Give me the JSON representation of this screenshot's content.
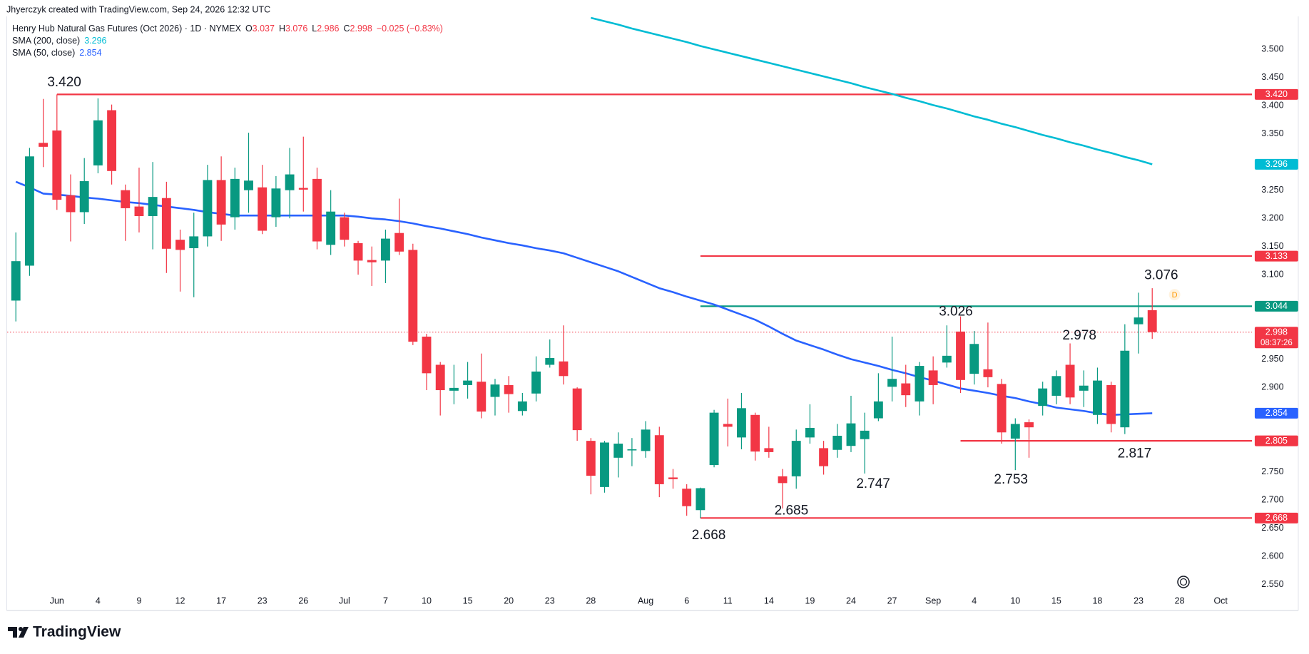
{
  "header": {
    "credit": "Jhyerczyk created with TradingView.com, Sep 24, 2026 12:32 UTC",
    "symbol": "Henry Hub Natural Gas Futures (Oct 2026) · 1D · NYMEX",
    "ohlc_labels": [
      "O",
      "H",
      "L",
      "C"
    ],
    "change": "−0.025 (−0.83%)"
  },
  "chart_data": {
    "type": "candlestick",
    "categories": [
      null,
      null,
      null,
      "Jun",
      null,
      null,
      "4",
      null,
      null,
      "9",
      null,
      null,
      "12",
      null,
      null,
      "17",
      null,
      null,
      "23",
      null,
      null,
      "26",
      null,
      null,
      "Jul",
      null,
      null,
      "7",
      null,
      null,
      "10",
      null,
      null,
      "15",
      null,
      null,
      "20",
      null,
      null,
      "23",
      null,
      null,
      "28",
      null,
      null,
      null,
      "Aug",
      null,
      null,
      "6",
      null,
      null,
      "11",
      null,
      null,
      "14",
      null,
      null,
      "19",
      null,
      null,
      "24",
      null,
      null,
      "27",
      null,
      null,
      "Sep",
      null,
      null,
      "4",
      null,
      null,
      "10",
      null,
      null,
      "15",
      null,
      null,
      "18",
      null,
      null,
      "23",
      null,
      null,
      "28",
      null,
      null,
      "Oct"
    ],
    "open": [
      3.054,
      3.116,
      3.334,
      3.356,
      3.241,
      3.211,
      3.294,
      3.392,
      3.25,
      3.221,
      3.204,
      3.236,
      3.162,
      3.147,
      3.168,
      3.268,
      3.202,
      3.25,
      3.255,
      3.202,
      3.25,
      3.254,
      3.27,
      3.153,
      3.202,
      3.156,
      3.126,
      3.125,
      3.174,
      3.144,
      2.99,
      2.94,
      2.894,
      2.904,
      2.91,
      2.883,
      2.904,
      2.858,
      2.889,
      2.94,
      2.946,
      2.898,
      2.805,
      2.723,
      2.775,
      2.788,
      2.787,
      2.815,
      2.74,
      2.72,
      2.682,
      2.762,
      2.835,
      2.811,
      2.851,
      2.792,
      2.742,
      2.742,
      2.811,
      2.792,
      2.789,
      2.796,
      2.808,
      2.845,
      2.901,
      2.907,
      2.875,
      2.93,
      2.944,
      2.999,
      2.924,
      2.932,
      2.906,
      2.809,
      2.838,
      2.867,
      2.885,
      2.94,
      2.894,
      2.851,
      2.904,
      2.829,
      3.012,
      3.037,
      null,
      null,
      null,
      null,
      null
    ],
    "high": [
      3.175,
      3.325,
      3.412,
      3.42,
      3.278,
      3.307,
      3.413,
      3.402,
      3.26,
      3.29,
      3.3,
      3.265,
      3.18,
      3.21,
      3.295,
      3.31,
      3.29,
      3.352,
      3.295,
      3.275,
      3.325,
      3.345,
      3.29,
      3.25,
      3.21,
      3.16,
      3.15,
      3.18,
      3.235,
      3.155,
      2.995,
      2.945,
      2.94,
      2.945,
      2.96,
      2.915,
      2.92,
      2.89,
      2.955,
      2.985,
      3.01,
      2.9,
      2.81,
      2.805,
      2.82,
      2.81,
      2.84,
      2.83,
      2.755,
      2.728,
      2.722,
      2.86,
      2.88,
      2.89,
      2.855,
      2.83,
      2.755,
      2.825,
      2.87,
      2.805,
      2.835,
      2.885,
      2.855,
      2.925,
      2.99,
      2.94,
      2.945,
      2.955,
      3.01,
      3.026,
      3.0,
      3.015,
      2.915,
      2.845,
      2.843,
      2.91,
      2.93,
      2.978,
      2.93,
      2.935,
      2.91,
      3.012,
      3.068,
      3.076,
      null,
      null,
      null,
      null,
      null
    ],
    "low": [
      3.017,
      3.098,
      3.291,
      3.215,
      3.159,
      3.19,
      3.28,
      3.26,
      3.16,
      3.175,
      3.145,
      3.103,
      3.07,
      3.06,
      3.15,
      3.16,
      3.18,
      3.21,
      3.172,
      3.185,
      3.2,
      3.212,
      3.145,
      3.135,
      3.15,
      3.1,
      3.08,
      3.085,
      3.135,
      2.975,
      2.895,
      2.85,
      2.87,
      2.88,
      2.845,
      2.85,
      2.855,
      2.85,
      2.875,
      2.935,
      2.905,
      2.805,
      2.71,
      2.713,
      2.74,
      2.76,
      2.775,
      2.705,
      2.72,
      2.672,
      2.668,
      2.758,
      2.795,
      2.79,
      2.77,
      2.775,
      2.685,
      2.72,
      2.8,
      2.745,
      2.775,
      2.785,
      2.747,
      2.84,
      2.875,
      2.865,
      2.85,
      2.87,
      2.935,
      2.89,
      2.905,
      2.9,
      2.8,
      2.753,
      2.775,
      2.85,
      2.87,
      2.87,
      2.865,
      2.835,
      2.82,
      2.817,
      2.96,
      2.986,
      null,
      null,
      null,
      null,
      null
    ],
    "close": [
      3.124,
      3.31,
      3.327,
      3.233,
      3.211,
      3.266,
      3.374,
      3.284,
      3.218,
      3.204,
      3.238,
      3.146,
      3.144,
      3.168,
      3.268,
      3.189,
      3.27,
      3.267,
      3.178,
      3.253,
      3.278,
      3.251,
      3.159,
      3.212,
      3.162,
      3.125,
      3.122,
      3.164,
      3.141,
      2.981,
      2.925,
      2.895,
      2.899,
      2.912,
      2.857,
      2.905,
      2.888,
      2.875,
      2.928,
      2.952,
      2.92,
      2.824,
      2.743,
      2.802,
      2.8,
      2.79,
      2.825,
      2.728,
      2.737,
      2.689,
      2.721,
      2.855,
      2.83,
      2.863,
      2.786,
      2.785,
      2.73,
      2.805,
      2.828,
      2.76,
      2.814,
      2.836,
      2.823,
      2.875,
      2.915,
      2.886,
      2.938,
      2.904,
      2.956,
      2.913,
      2.977,
      2.918,
      2.82,
      2.835,
      2.829,
      2.898,
      2.92,
      2.882,
      2.903,
      2.912,
      2.835,
      2.965,
      3.024,
      2.998,
      null,
      null,
      null,
      null,
      null
    ],
    "up_color": "#089981",
    "down_color": "#f23645",
    "overlays": [
      {
        "name": "SMA (200, close)",
        "color": "#00bcd4",
        "values": [
          null,
          null,
          null,
          null,
          null,
          null,
          null,
          null,
          null,
          null,
          null,
          null,
          null,
          null,
          null,
          null,
          null,
          null,
          null,
          null,
          null,
          null,
          null,
          null,
          null,
          null,
          null,
          null,
          null,
          null,
          null,
          null,
          null,
          null,
          null,
          null,
          null,
          null,
          null,
          null,
          null,
          null,
          3.556,
          3.55,
          3.544,
          3.537,
          3.531,
          3.525,
          3.519,
          3.513,
          3.506,
          3.5,
          3.494,
          3.488,
          3.482,
          3.476,
          3.47,
          3.464,
          3.458,
          3.452,
          3.446,
          3.44,
          3.433,
          3.427,
          3.421,
          3.414,
          3.408,
          3.401,
          3.395,
          3.388,
          3.381,
          3.375,
          3.368,
          3.362,
          3.355,
          3.348,
          3.342,
          3.335,
          3.329,
          3.322,
          3.316,
          3.309,
          3.303,
          3.296,
          null,
          null,
          null,
          null,
          null
        ]
      },
      {
        "name": "SMA (50, close)",
        "color": "#2962ff",
        "values": [
          3.265,
          3.255,
          3.244,
          3.242,
          3.24,
          3.237,
          3.235,
          3.232,
          3.229,
          3.227,
          3.224,
          3.221,
          3.218,
          3.215,
          3.211,
          3.208,
          3.205,
          3.205,
          3.205,
          3.205,
          3.205,
          3.205,
          3.205,
          3.205,
          3.205,
          3.203,
          3.2,
          3.198,
          3.195,
          3.191,
          3.186,
          3.182,
          3.177,
          3.172,
          3.166,
          3.161,
          3.156,
          3.152,
          3.147,
          3.143,
          3.138,
          3.13,
          3.122,
          3.114,
          3.106,
          3.096,
          3.086,
          3.076,
          3.069,
          3.061,
          3.054,
          3.047,
          3.038,
          3.029,
          3.02,
          3.008,
          2.995,
          2.983,
          2.975,
          2.967,
          2.958,
          2.95,
          2.944,
          2.938,
          2.931,
          2.925,
          2.918,
          2.912,
          2.905,
          2.898,
          2.894,
          2.89,
          2.885,
          2.881,
          2.875,
          2.87,
          2.864,
          2.861,
          2.858,
          2.854,
          2.851,
          2.852,
          2.853,
          2.854,
          null,
          null,
          null,
          null,
          null
        ]
      }
    ],
    "levels": [
      {
        "value": 3.42,
        "label": "3.420",
        "color": "#f23645"
      },
      {
        "value": 3.133,
        "label": "3.133",
        "color": "#f23645"
      },
      {
        "value": 3.044,
        "label": "3.044",
        "color": "#089981"
      },
      {
        "value": 2.805,
        "label": "2.805",
        "color": "#f23645"
      },
      {
        "value": 2.668,
        "label": "2.668",
        "color": "#f23645"
      }
    ],
    "annotations": [
      {
        "label": "3.420",
        "value": 3.42
      },
      {
        "label": "3.076",
        "value": 3.076
      },
      {
        "label": "3.026",
        "value": 3.026
      },
      {
        "label": "2.978",
        "value": 2.978
      },
      {
        "label": "2.817",
        "value": 2.817
      },
      {
        "label": "2.753",
        "value": 2.753
      },
      {
        "label": "2.747",
        "value": 2.747
      },
      {
        "label": "2.685",
        "value": 2.685
      },
      {
        "label": "2.668",
        "value": 2.668
      }
    ],
    "countdown": "08:37:26",
    "marker": "D",
    "ylim": [
      2.543,
      3.558
    ],
    "yticks": [
      {
        "value": 2.55,
        "label": "2.550"
      },
      {
        "value": 2.6,
        "label": "2.600"
      },
      {
        "value": 2.65,
        "label": "2.650"
      },
      {
        "value": 2.7,
        "label": "2.700"
      },
      {
        "value": 2.75,
        "label": "2.750"
      },
      {
        "value": 2.9,
        "label": "2.900"
      },
      {
        "value": 2.95,
        "label": "2.950"
      },
      {
        "value": 3.1,
        "label": "3.100"
      },
      {
        "value": 3.15,
        "label": "3.150"
      },
      {
        "value": 3.2,
        "label": "3.200"
      },
      {
        "value": 3.25,
        "label": "3.250"
      },
      {
        "value": 3.35,
        "label": "3.350"
      },
      {
        "value": 3.4,
        "label": "3.400"
      },
      {
        "value": 3.45,
        "label": "3.450"
      },
      {
        "value": 3.5,
        "label": "3.500"
      }
    ],
    "grid": false
  },
  "footer": {
    "brand": "TradingView"
  }
}
